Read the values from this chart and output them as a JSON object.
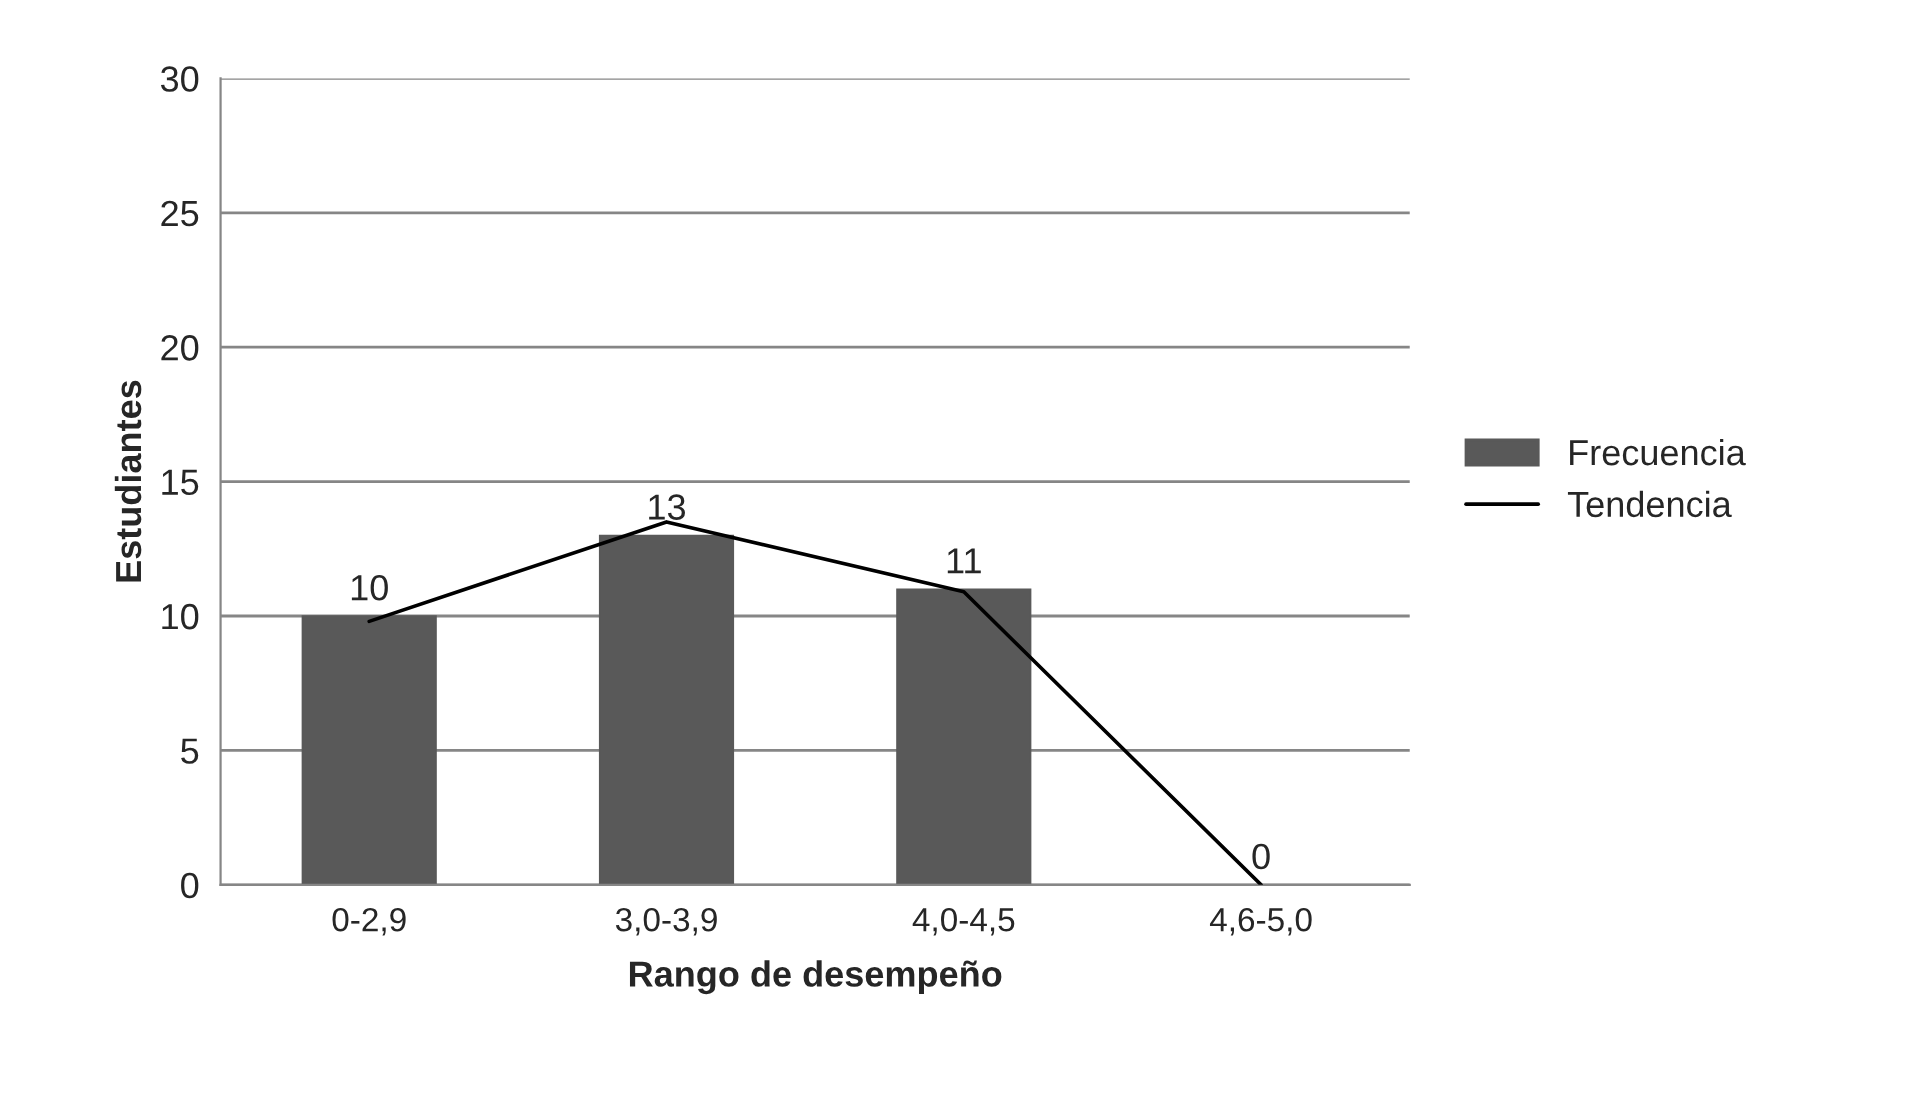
{
  "chart_data": {
    "type": "bar",
    "xlabel": "Rango de desempeño",
    "ylabel": "Estudiantes",
    "categories": [
      "0-2,9",
      "3,0-3,9",
      "4,0-4,5",
      "4,6-5,0"
    ],
    "series": [
      {
        "name": "Frecuencia",
        "color": "#595959",
        "values": [
          10,
          13,
          11,
          0
        ],
        "value_labels": [
          "10",
          "13",
          "11",
          "0"
        ]
      },
      {
        "name": "Tendencia",
        "type": "line",
        "color": "#000000",
        "values": [
          9.8,
          13.5,
          10.9,
          0
        ]
      }
    ],
    "ylim": [
      0,
      30
    ],
    "yticks": [
      0,
      5,
      10,
      15,
      20,
      25,
      30
    ],
    "grid": "y",
    "legend": "right"
  }
}
